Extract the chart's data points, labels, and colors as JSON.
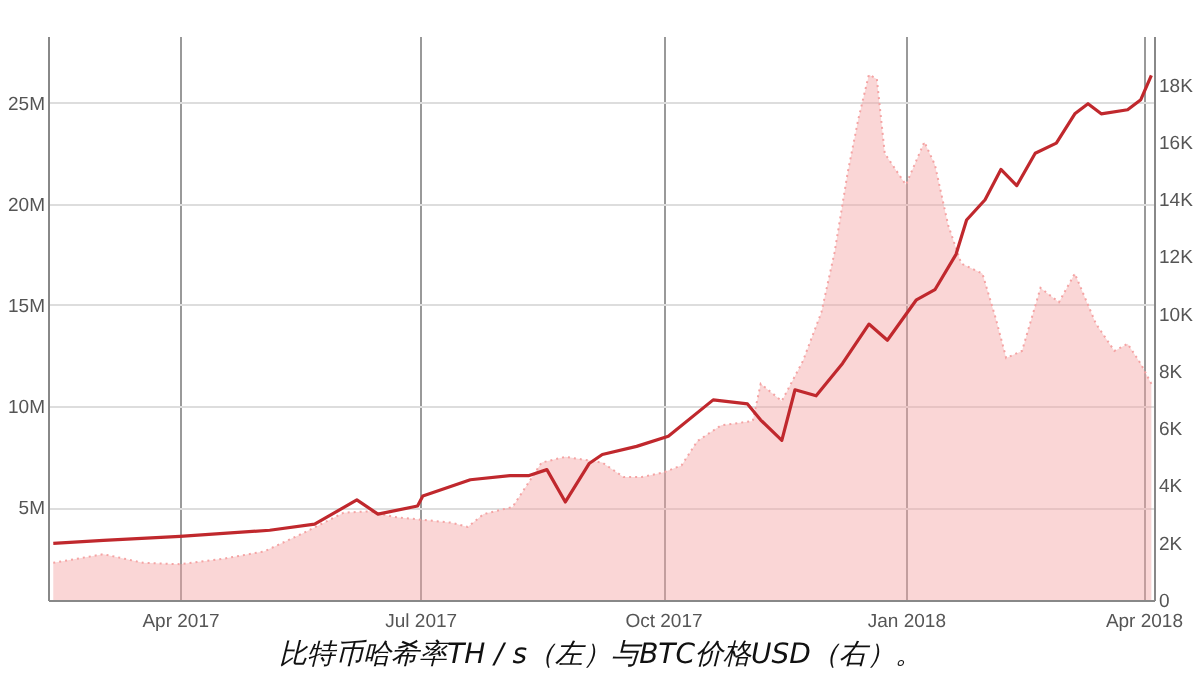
{
  "chart_data": {
    "type": "line",
    "title": "比特币哈希率TH / s（左）与BTC价格USD（右）。",
    "grid": true,
    "xlim": [
      "2017-02-10",
      "2018-04-05"
    ],
    "xticks": [
      {
        "value": "2017-04-01",
        "label": "Apr 2017"
      },
      {
        "value": "2017-07-01",
        "label": "Jul 2017"
      },
      {
        "value": "2017-10-01",
        "label": "Oct 2017"
      },
      {
        "value": "2018-01-01",
        "label": "Jan 2018"
      },
      {
        "value": "2018-04-01",
        "label": "Apr 2018"
      }
    ],
    "ylim": [
      400000,
      28300000
    ],
    "yticks": [
      {
        "value": 5000000,
        "label": "5M"
      },
      {
        "value": 10000000,
        "label": "10M"
      },
      {
        "value": 15000000,
        "label": "15M"
      },
      {
        "value": 20000000,
        "label": "20M"
      },
      {
        "value": 25000000,
        "label": "25M"
      }
    ],
    "y2lim": [
      0,
      19700
    ],
    "y2ticks": [
      {
        "value": 0,
        "label": "0"
      },
      {
        "value": 2000,
        "label": "2K"
      },
      {
        "value": 4000,
        "label": "4K"
      },
      {
        "value": 6000,
        "label": "6K"
      },
      {
        "value": 8000,
        "label": "8K"
      },
      {
        "value": 10000,
        "label": "10K"
      },
      {
        "value": 12000,
        "label": "12K"
      },
      {
        "value": 14000,
        "label": "14K"
      },
      {
        "value": 16000,
        "label": "16K"
      },
      {
        "value": 18000,
        "label": "18K"
      }
    ],
    "series": [
      {
        "type": "area",
        "axis": "y2",
        "color": "#f4a3a3",
        "line_style": "dotted",
        "x": [
          "2017-02-12",
          "2017-03-03",
          "2017-03-18",
          "2017-04-01",
          "2017-04-18",
          "2017-05-03",
          "2017-05-18",
          "2017-06-02",
          "2017-06-12",
          "2017-06-21",
          "2017-07-02",
          "2017-07-13",
          "2017-07-19",
          "2017-07-25",
          "2017-08-05",
          "2017-08-16",
          "2017-08-25",
          "2017-09-08",
          "2017-09-16",
          "2017-09-23",
          "2017-10-01",
          "2017-10-08",
          "2017-10-14",
          "2017-10-23",
          "2017-11-04",
          "2017-11-07",
          "2017-11-15",
          "2017-11-23",
          "2017-11-30",
          "2017-12-05",
          "2017-12-10",
          "2017-12-14",
          "2017-12-18",
          "2017-12-21",
          "2017-12-24",
          "2018-01-01",
          "2018-01-08",
          "2018-01-12",
          "2018-01-17",
          "2018-01-22",
          "2018-01-30",
          "2018-02-04",
          "2018-02-08",
          "2018-02-14",
          "2018-02-21",
          "2018-02-28",
          "2018-03-06",
          "2018-03-14",
          "2018-03-21",
          "2018-03-26",
          "2018-03-31",
          "2018-04-04"
        ],
        "values": [
          1300,
          1600,
          1300,
          1250,
          1450,
          1700,
          2350,
          3050,
          3100,
          2900,
          2800,
          2700,
          2550,
          3000,
          3250,
          4800,
          5000,
          4800,
          4300,
          4300,
          4450,
          4700,
          5550,
          6100,
          6250,
          7550,
          6950,
          8350,
          10050,
          12150,
          14950,
          16800,
          18350,
          18200,
          15600,
          14500,
          16000,
          15200,
          13100,
          11750,
          11400,
          9850,
          8450,
          8700,
          10900,
          10400,
          11400,
          9650,
          8700,
          8950,
          8250,
          7550
        ]
      },
      {
        "type": "line",
        "color": "#c0282d",
        "line_style": "solid",
        "x": [
          "2017-02-12",
          "2017-03-03",
          "2017-04-01",
          "2017-05-05",
          "2017-05-22",
          "2017-06-07",
          "2017-06-15",
          "2017-06-30",
          "2017-07-02",
          "2017-07-20",
          "2017-08-04",
          "2017-08-11",
          "2017-08-18",
          "2017-08-25",
          "2017-09-03",
          "2017-09-08",
          "2017-09-21",
          "2017-10-03",
          "2017-10-20",
          "2017-11-02",
          "2017-11-07",
          "2017-11-15",
          "2017-11-20",
          "2017-11-28",
          "2017-12-08",
          "2017-12-18",
          "2017-12-25",
          "2018-01-05",
          "2018-01-12",
          "2018-01-20",
          "2018-01-24",
          "2018-01-31",
          "2018-02-06",
          "2018-02-12",
          "2018-02-19",
          "2018-02-27",
          "2018-03-06",
          "2018-03-11",
          "2018-03-16",
          "2018-03-26",
          "2018-03-31",
          "2018-04-04"
        ],
        "values": [
          3200000,
          3350000,
          3550000,
          3850000,
          4150000,
          5350000,
          4650000,
          5050000,
          5550000,
          6350000,
          6550000,
          6550000,
          6850000,
          5250000,
          7150000,
          7600000,
          8000000,
          8500000,
          10300000,
          10100000,
          9300000,
          8300000,
          10800000,
          10500000,
          12100000,
          14050000,
          13250000,
          15250000,
          15750000,
          17500000,
          19200000,
          20200000,
          21700000,
          20900000,
          22500000,
          23000000,
          24450000,
          24950000,
          24450000,
          24650000,
          25150000,
          26350000
        ]
      }
    ]
  }
}
